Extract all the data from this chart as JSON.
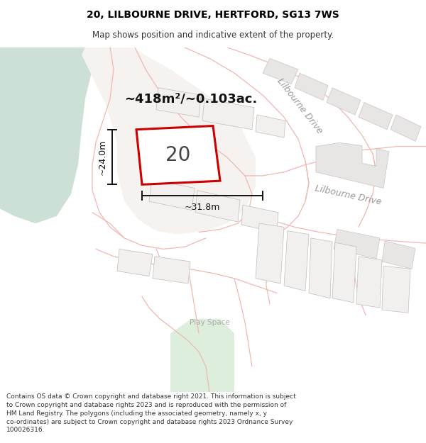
{
  "title": "20, LILBOURNE DRIVE, HERTFORD, SG13 7WS",
  "subtitle": "Map shows position and indicative extent of the property.",
  "footer": "Contains OS data © Crown copyright and database right 2021. This information is subject to Crown copyright and database rights 2023 and is reproduced with the permission of HM Land Registry. The polygons (including the associated geometry, namely x, y co-ordinates) are subject to Crown copyright and database rights 2023 Ordnance Survey 100026316.",
  "area_label": "~418m²/~0.103ac.",
  "number_label": "20",
  "dim_horiz": "~31.8m",
  "dim_vert": "~24.0m",
  "bg_color": "#f7f5f2",
  "green_color": "#cde0d5",
  "green2_color": "#ddeedd",
  "road_line_color": "#f0b8b0",
  "road_fill_color": "#f9f6f4",
  "building_fill": "#e8e6e4",
  "building_edge": "#c8c4c0",
  "parcel_fill": "#f2f0ee",
  "parcel_edge": "#c0bcb8",
  "property_fill": "#ffffff",
  "property_edge": "#cc0000",
  "dim_color": "#111111",
  "text_color": "#000000",
  "road_label_color": "#999999"
}
